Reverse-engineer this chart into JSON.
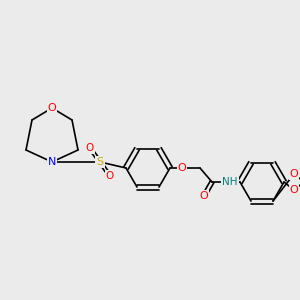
{
  "background_color": "#ebebeb",
  "bond_color": "#000000",
  "double_bond_color": "#000000",
  "colors": {
    "O": "#ff0000",
    "N": "#0000ff",
    "S": "#ccaa00",
    "H": "#008080",
    "C": "#000000"
  },
  "font_size": 7.5,
  "lw": 1.2
}
